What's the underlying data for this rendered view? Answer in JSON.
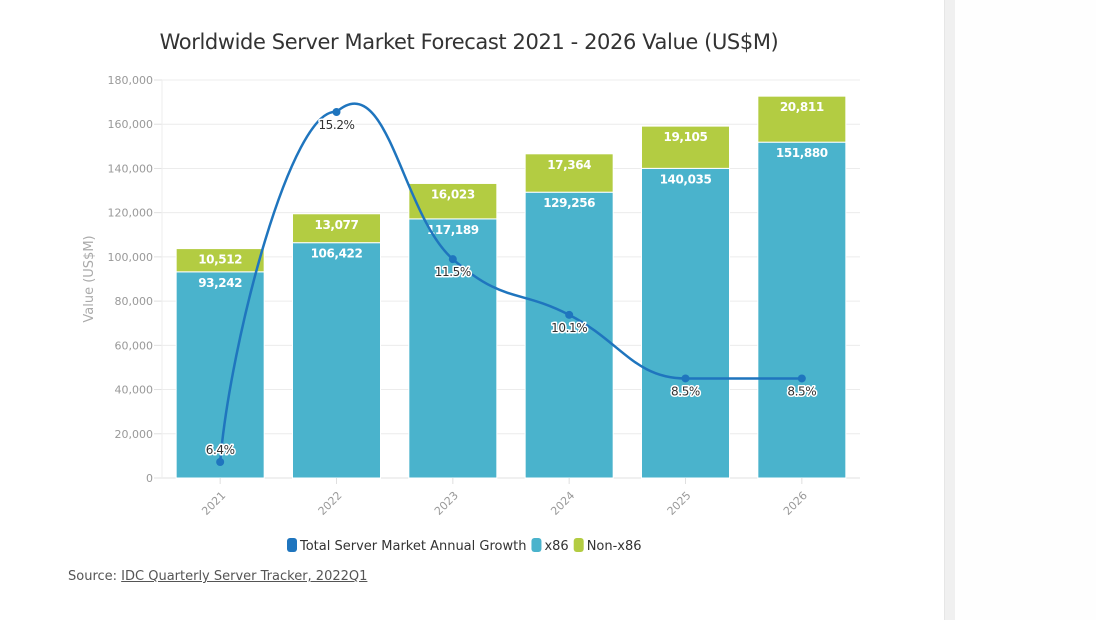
{
  "chart_data": {
    "type": "bar",
    "stacked": true,
    "title": "Worldwide Server Market Forecast 2021 - 2026 Value (US$M)",
    "xlabel": "",
    "ylabel": "Value (US$M)",
    "ylim": [
      0,
      180000
    ],
    "yticks": [
      0,
      20000,
      40000,
      60000,
      80000,
      100000,
      120000,
      140000,
      160000,
      180000
    ],
    "ytick_labels": [
      "0",
      "20,000",
      "40,000",
      "60,000",
      "80,000",
      "100,000",
      "120,000",
      "140,000",
      "160,000",
      "180,000"
    ],
    "grid": true,
    "categories": [
      "2021",
      "2022",
      "2023",
      "2024",
      "2025",
      "2026"
    ],
    "series": [
      {
        "name": "x86",
        "type": "bar",
        "color": "#4ab3cc",
        "values": [
          93242,
          106422,
          117189,
          129256,
          140035,
          151880
        ],
        "labels": [
          "93,242",
          "106,422",
          "117,189",
          "129,256",
          "140,035",
          "151,880"
        ]
      },
      {
        "name": "Non-x86",
        "type": "bar",
        "color": "#b3cc42",
        "values": [
          10512,
          13077,
          16023,
          17364,
          19105,
          20811
        ],
        "labels": [
          "10,512",
          "13,077",
          "16,023",
          "17,364",
          "19,105",
          "20,811"
        ]
      },
      {
        "name": "Total Server Market Annual Growth",
        "type": "line",
        "smooth": true,
        "secondary_axis": true,
        "color": "#1f75be",
        "values": [
          6.4,
          15.2,
          11.5,
          10.1,
          8.5,
          8.5
        ],
        "labels": [
          "6.4%",
          "15.2%",
          "11.5%",
          "10.1%",
          "8.5%",
          "8.5%"
        ]
      }
    ],
    "legend": {
      "position": "bottom-center",
      "order": [
        "Total Server Market Annual Growth",
        "x86",
        "Non-x86"
      ]
    }
  },
  "source": {
    "prefix": "Source: ",
    "link_text": "IDC Quarterly Server Tracker, 2022Q1"
  }
}
